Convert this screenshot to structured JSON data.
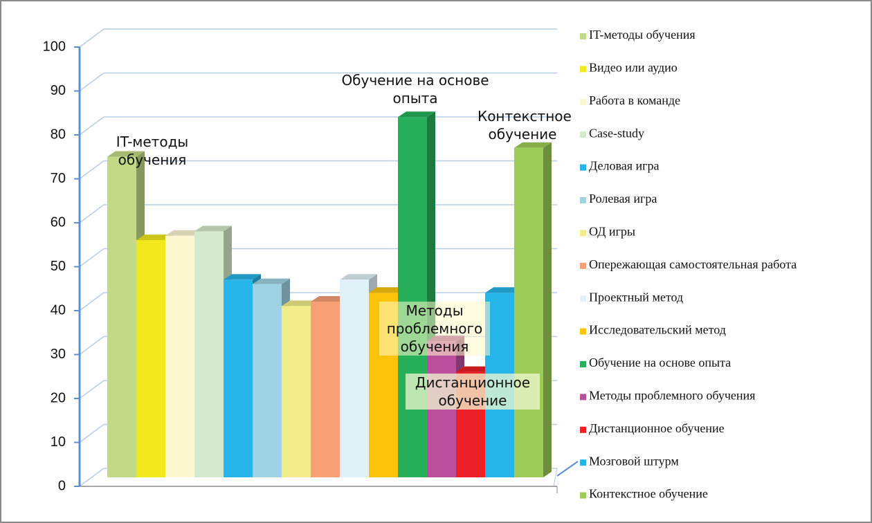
{
  "chart_data": {
    "type": "bar3d",
    "categories": [
      "IT-методы обучения",
      "Видео или аудио",
      "Работа в команде",
      "Case-study",
      "Деловая игра",
      "Ролевая игра",
      "ОД игры",
      "Опережающая самостоятельная работа",
      "Проектный метод",
      "Исследовательский метод",
      "Обучение на основе опыта",
      "Методы проблемного обучения",
      "Дистанционное обучение",
      "Мозговой штурм",
      "Контекстное обучение"
    ],
    "values": [
      73,
      54,
      55,
      56,
      45,
      44,
      39,
      40,
      45,
      42,
      82,
      31,
      24,
      42,
      75
    ],
    "colors": [
      "#c3d985",
      "#f2e81e",
      "#fdf7d0",
      "#d5e9cc",
      "#27b4e8",
      "#9fd2e2",
      "#f2ec8a",
      "#f7a076",
      "#e0f2f8",
      "#fbc40a",
      "#27b05a",
      "#bb4f9e",
      "#ee2027",
      "#27b4e8",
      "#9ccb57"
    ],
    "ylim": [
      0,
      100
    ],
    "yticks": [
      0,
      10,
      20,
      30,
      40,
      50,
      60,
      70,
      80,
      90,
      100
    ],
    "grid": true,
    "legend": "right"
  }
}
